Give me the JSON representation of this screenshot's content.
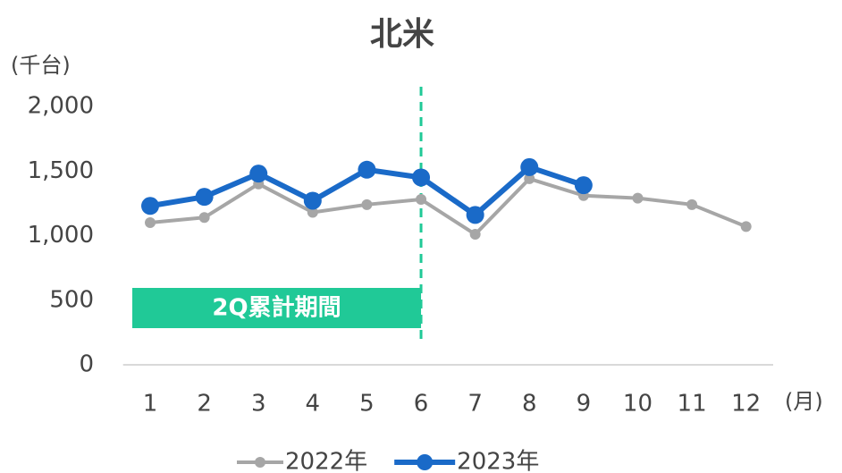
{
  "chart_data": {
    "type": "line",
    "title": "北米",
    "y_unit": "(千台)",
    "x_unit": "(月)",
    "annotation": "2Q累計期間",
    "categories": [
      "1",
      "2",
      "3",
      "4",
      "5",
      "6",
      "7",
      "8",
      "9",
      "10",
      "11",
      "12"
    ],
    "series": [
      {
        "name": "2022年",
        "color": "#a6a6a6",
        "values": [
          1100,
          1140,
          1400,
          1180,
          1240,
          1280,
          1010,
          1440,
          1310,
          1290,
          1240,
          1070
        ]
      },
      {
        "name": "2023年",
        "color": "#1a6ac8",
        "values": [
          1230,
          1300,
          1480,
          1270,
          1510,
          1450,
          1160,
          1530,
          1390,
          null,
          null,
          null
        ]
      }
    ],
    "ylim": [
      0,
      2000
    ],
    "yticks": [
      0,
      500,
      {
        "value": 1000,
        "label": "1,000"
      },
      {
        "value": 1500,
        "label": "1,500"
      },
      {
        "value": 2000,
        "label": "2,000"
      }
    ],
    "grid": false,
    "legend": "bottom"
  }
}
